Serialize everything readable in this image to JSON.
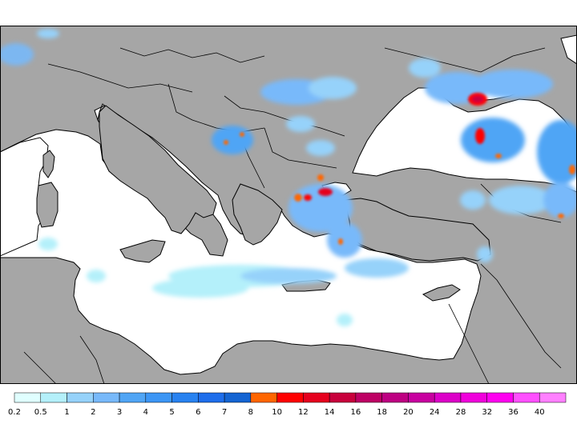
{
  "map": {
    "land_color": "#a6a6a6",
    "sea_color": "#ffffff",
    "border_color": "#000000"
  },
  "legend": {
    "labels": [
      "0.2",
      "0.5",
      "1",
      "2",
      "3",
      "4",
      "5",
      "6",
      "7",
      "8",
      "10",
      "12",
      "14",
      "16",
      "18",
      "20",
      "24",
      "28",
      "32",
      "36",
      "40"
    ],
    "colors": [
      "#e0ffff",
      "#b4f0fa",
      "#96d2fa",
      "#78b9fa",
      "#50a5f5",
      "#3c96f5",
      "#2882f0",
      "#1e6eeb",
      "#1464d2",
      "#ff6600",
      "#ff0000",
      "#e6001e",
      "#c8003c",
      "#be0064",
      "#be0082",
      "#c800a0",
      "#dc00c8",
      "#f000dc",
      "#ff00f0",
      "#ff50ff",
      "#ff80ff"
    ]
  }
}
